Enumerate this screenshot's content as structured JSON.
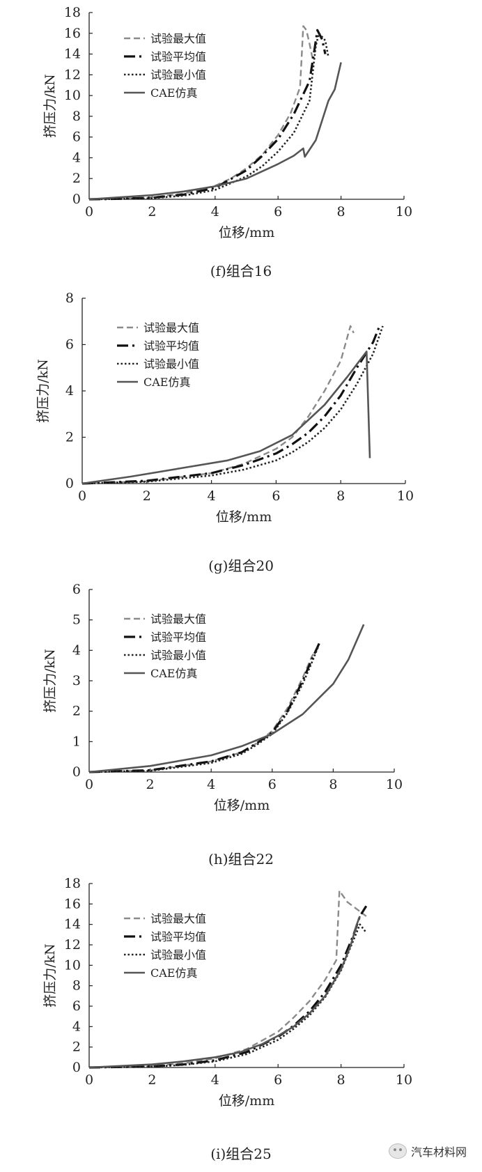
{
  "styles": {
    "max": {
      "color": "#8a8a8a",
      "dash": "9 5",
      "width": 2.4
    },
    "avg": {
      "color": "#111111",
      "dash": "16 6 3 6",
      "width": 3.2
    },
    "min": {
      "color": "#222222",
      "dash": "2.5 3",
      "width": 2.6
    },
    "cae": {
      "color": "#555555",
      "dash": "",
      "width": 2.6
    }
  },
  "chart_data": [
    {
      "type": "line",
      "caption": "(f)组合16",
      "xlabel": "位移/mm",
      "ylabel": "挤压力/kN",
      "xlim": [
        0,
        10
      ],
      "ylim": [
        0,
        18
      ],
      "xticks": [
        0,
        2,
        4,
        6,
        8,
        10
      ],
      "yticks": [
        0,
        2,
        4,
        6,
        8,
        10,
        12,
        14,
        16,
        18
      ],
      "legend_position": "top-left",
      "series": [
        {
          "name": "试验最大值",
          "style": "max",
          "x": [
            0,
            1,
            2,
            3,
            4,
            4.5,
            5,
            5.5,
            6,
            6.4,
            6.7,
            6.8,
            6.9,
            7.0,
            7.1
          ],
          "y": [
            0,
            0.05,
            0.2,
            0.55,
            1.3,
            2.0,
            3.0,
            4.3,
            6.2,
            8.3,
            10.8,
            16.7,
            16.3,
            15.0,
            13.5
          ]
        },
        {
          "name": "试验平均值",
          "style": "avg",
          "x": [
            0,
            1,
            2,
            3,
            4,
            5,
            5.5,
            6,
            6.5,
            7.0,
            7.15,
            7.25,
            7.4,
            7.5
          ],
          "y": [
            0,
            0.05,
            0.15,
            0.45,
            1.1,
            2.8,
            4.2,
            5.8,
            8.2,
            11.4,
            14.3,
            16.3,
            15.4,
            14.0
          ]
        },
        {
          "name": "试验最小值",
          "style": "min",
          "x": [
            0,
            1,
            2,
            3,
            4,
            5,
            5.5,
            6,
            6.5,
            7.0,
            7.2,
            7.3,
            7.5,
            7.6
          ],
          "y": [
            0,
            0.03,
            0.1,
            0.35,
            0.9,
            2.2,
            3.2,
            4.6,
            6.4,
            9.5,
            14.8,
            16.0,
            15.3,
            13.7
          ]
        },
        {
          "name": "CAE仿真",
          "style": "cae",
          "x": [
            0,
            1,
            2,
            3,
            4,
            5,
            6,
            6.5,
            6.8,
            6.85,
            7.2,
            7.6,
            7.8,
            8.0
          ],
          "y": [
            0,
            0.2,
            0.4,
            0.75,
            1.25,
            2.0,
            3.4,
            4.2,
            4.9,
            4.1,
            5.7,
            9.5,
            10.6,
            13.2
          ]
        }
      ]
    },
    {
      "type": "line",
      "caption": "(g)组合20",
      "xlabel": "位移/mm",
      "ylabel": "挤压力/kN",
      "xlim": [
        0,
        10
      ],
      "ylim": [
        0,
        8
      ],
      "xticks": [
        0,
        2,
        4,
        6,
        8,
        10
      ],
      "yticks": [
        0,
        2,
        4,
        6,
        8
      ],
      "legend_position": "top-left",
      "series": [
        {
          "name": "试验最大值",
          "style": "max",
          "x": [
            0,
            2,
            4,
            5,
            6,
            6.5,
            7,
            7.5,
            8,
            8.3,
            8.4
          ],
          "y": [
            0,
            0.1,
            0.45,
            0.85,
            1.5,
            2.0,
            2.9,
            4.0,
            5.3,
            6.8,
            6.5
          ]
        },
        {
          "name": "试验平均值",
          "style": "avg",
          "x": [
            0,
            2,
            4,
            5,
            6,
            6.5,
            7,
            7.5,
            8,
            8.5,
            9.0,
            9.2
          ],
          "y": [
            0,
            0.12,
            0.45,
            0.8,
            1.3,
            1.7,
            2.2,
            2.9,
            3.8,
            5.0,
            6.1,
            6.8
          ]
        },
        {
          "name": "试验最小值",
          "style": "min",
          "x": [
            0,
            2,
            4,
            5,
            6,
            6.5,
            7,
            7.5,
            8,
            8.5,
            9.0,
            9.3
          ],
          "y": [
            0,
            0.08,
            0.35,
            0.6,
            1.0,
            1.35,
            1.8,
            2.4,
            3.2,
            4.3,
            5.6,
            6.8
          ]
        },
        {
          "name": "CAE仿真",
          "style": "cae",
          "x": [
            0,
            1.5,
            3,
            4.5,
            5.5,
            6.5,
            7.5,
            8.2,
            8.8,
            8.9
          ],
          "y": [
            0,
            0.3,
            0.65,
            1.0,
            1.4,
            2.1,
            3.4,
            4.6,
            5.7,
            1.1
          ]
        }
      ]
    },
    {
      "type": "line",
      "caption": "(h)组合22",
      "xlabel": "位移/mm",
      "ylabel": "挤压力/kN",
      "xlim": [
        0,
        10
      ],
      "ylim": [
        0,
        6
      ],
      "xticks": [
        0,
        2,
        4,
        6,
        8,
        10
      ],
      "yticks": [
        0,
        1,
        2,
        3,
        4,
        5,
        6
      ],
      "legend_position": "top-left",
      "series": [
        {
          "name": "试验最大值",
          "style": "max",
          "x": [
            0,
            2,
            4,
            5,
            5.5,
            6,
            6.5,
            7,
            7.3,
            7.55
          ],
          "y": [
            0,
            0.05,
            0.35,
            0.65,
            0.95,
            1.35,
            2.1,
            3.1,
            3.8,
            4.2
          ]
        },
        {
          "name": "试验平均值",
          "style": "avg",
          "x": [
            0,
            2,
            4,
            5,
            5.5,
            6,
            6.5,
            7,
            7.3,
            7.55
          ],
          "y": [
            0,
            0.06,
            0.35,
            0.65,
            0.95,
            1.3,
            2.0,
            3.0,
            3.7,
            4.25
          ]
        },
        {
          "name": "试验最小值",
          "style": "min",
          "x": [
            0,
            2,
            4,
            5,
            5.5,
            6,
            6.5,
            7,
            7.3,
            7.5
          ],
          "y": [
            0,
            0.04,
            0.3,
            0.6,
            0.9,
            1.25,
            1.95,
            2.9,
            3.6,
            4.1
          ]
        },
        {
          "name": "CAE仿真",
          "style": "cae",
          "x": [
            0,
            2,
            4,
            5,
            6,
            7,
            8,
            8.5,
            9.0
          ],
          "y": [
            0,
            0.2,
            0.55,
            0.85,
            1.25,
            1.9,
            2.9,
            3.7,
            4.85
          ]
        }
      ]
    },
    {
      "type": "line",
      "caption": "(i)组合25",
      "xlabel": "位移/mm",
      "ylabel": "挤压力/kN",
      "xlim": [
        0,
        10
      ],
      "ylim": [
        0,
        18
      ],
      "xticks": [
        0,
        2,
        4,
        6,
        8,
        10
      ],
      "yticks": [
        0,
        2,
        4,
        6,
        8,
        10,
        12,
        14,
        16,
        18
      ],
      "legend_position": "top-left",
      "series": [
        {
          "name": "试验最大值",
          "style": "max",
          "x": [
            0,
            2,
            3,
            4,
            5,
            6,
            6.5,
            7,
            7.5,
            7.85,
            7.95,
            8.2,
            8.5,
            8.8
          ],
          "y": [
            0,
            0.15,
            0.4,
            0.9,
            1.8,
            3.5,
            4.9,
            6.5,
            8.6,
            10.5,
            17.3,
            16.2,
            15.5,
            14.8
          ]
        },
        {
          "name": "试验平均值",
          "style": "avg",
          "x": [
            0,
            2,
            3,
            4,
            5,
            6,
            6.5,
            7,
            7.5,
            8,
            8.4,
            8.6,
            8.8
          ],
          "y": [
            0,
            0.1,
            0.3,
            0.7,
            1.5,
            3.0,
            4.1,
            5.5,
            7.4,
            10.0,
            13.0,
            14.8,
            15.8
          ]
        },
        {
          "name": "试验最小值",
          "style": "min",
          "x": [
            0,
            2,
            3,
            4,
            5,
            6,
            6.5,
            7,
            7.5,
            8,
            8.4,
            8.6,
            8.8
          ],
          "y": [
            0,
            0.08,
            0.25,
            0.6,
            1.3,
            2.7,
            3.8,
            5.1,
            6.9,
            9.5,
            12.5,
            14.0,
            13.2
          ]
        },
        {
          "name": "CAE仿真",
          "style": "cae",
          "x": [
            0,
            2,
            3,
            4,
            4.8,
            5.5,
            6,
            6.5,
            7,
            7.5,
            8,
            8.3,
            8.5,
            8.6
          ],
          "y": [
            0,
            0.3,
            0.6,
            1.0,
            1.5,
            2.3,
            3.1,
            4.0,
            5.3,
            7.0,
            9.6,
            11.9,
            14.0,
            14.8
          ]
        }
      ]
    }
  ],
  "watermark": {
    "text": "汽车材料网",
    "icon": "wechat-icon"
  }
}
